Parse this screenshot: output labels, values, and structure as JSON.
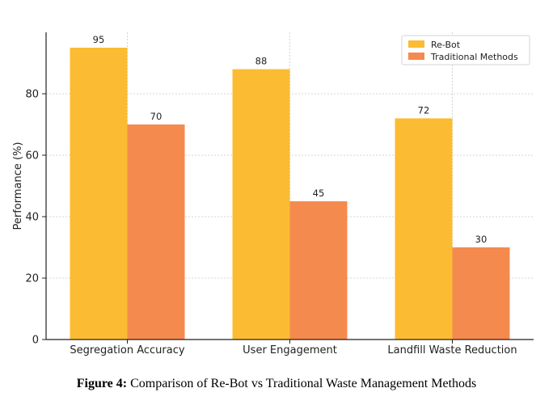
{
  "chart_data": {
    "type": "bar",
    "title": "",
    "xlabel": "",
    "ylabel": "Performance (%)",
    "categories": [
      "Segregation Accuracy",
      "User Engagement",
      "Landfill Waste Reduction"
    ],
    "series": [
      {
        "name": "Re-Bot",
        "values": [
          95,
          88,
          72
        ],
        "color": "#FBBC33"
      },
      {
        "name": "Traditional Methods",
        "values": [
          70,
          45,
          30
        ],
        "color": "#F58A4E"
      }
    ],
    "ylim": [
      0,
      100
    ],
    "yticks": [
      0,
      20,
      40,
      60,
      80
    ],
    "grid": true,
    "legend_position": "top-right"
  },
  "caption": {
    "label": "Figure 4:",
    "text": " Comparison of Re-Bot vs Traditional Waste Management Methods"
  }
}
